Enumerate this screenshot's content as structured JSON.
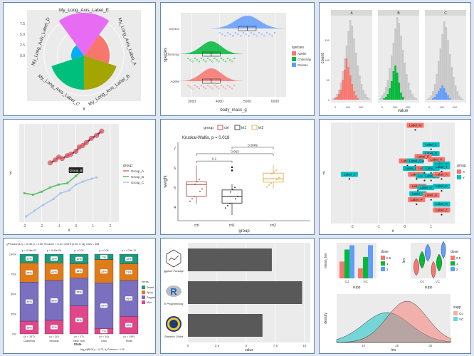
{
  "chart_data": [
    {
      "type": "pie",
      "variant": "coxcomb",
      "categories": [
        "My_Long_Axis_Label_A",
        "My_Long_Axis_Label_B",
        "My_Long_Axis_Label_C",
        "My_Long_Axis_Label_D",
        "My_Long_Axis_Label_E"
      ],
      "values": [
        3,
        4,
        4,
        1.5,
        5
      ],
      "colors": [
        "#f8766d",
        "#a3a500",
        "#00bf7d",
        "#00b0f6",
        "#e76bf3"
      ],
      "xlabel": "x",
      "yticks": [
        "0.0",
        "2.5",
        "5.0",
        "7.5"
      ]
    },
    {
      "type": "raincloud",
      "categories": [
        "Adelie",
        "Chinstrap",
        "Gentoo"
      ],
      "medians": [
        3700,
        3700,
        5000
      ],
      "colors": [
        "#f8766d",
        "#00ba38",
        "#619cff"
      ],
      "xlabel": "body_mass_g",
      "ylabel": "species",
      "xticks": [
        "3000",
        "4000",
        "5000",
        "6000"
      ],
      "legend_title": "species",
      "legend": [
        "Adelie",
        "Chinstrap",
        "Gentoo"
      ]
    },
    {
      "type": "histogram",
      "facets": [
        "A",
        "B",
        "C"
      ],
      "colors": [
        "#f8766d",
        "#00ba38",
        "#619cff"
      ],
      "xlabel": "value",
      "ylabel": "count",
      "xticks": [
        "0",
        "200",
        "400"
      ],
      "yticks": [
        "0",
        "50",
        "100",
        "150"
      ]
    },
    {
      "type": "line",
      "series": [
        {
          "name": "Group_A",
          "color": "#e46a6a",
          "x": [
            -1.5,
            -1.2,
            -1.0,
            -0.8,
            -0.5,
            -0.3,
            0.0,
            0.2,
            0.4,
            0.6,
            0.9,
            1.2,
            1.5
          ],
          "y": [
            1.1,
            1.3,
            1.5,
            1.4,
            1.6,
            1.7,
            1.9,
            2.2,
            2.3,
            2.5,
            2.8,
            3.0,
            3.3
          ]
        },
        {
          "name": "Group_B",
          "color": "#5cbf66",
          "x": [
            -3.0,
            -2.5,
            -2.0,
            -1.5,
            -1.0,
            -0.5,
            0.0,
            0.3
          ],
          "y": [
            -1.0,
            -1.1,
            -0.9,
            -0.6,
            -0.4,
            -0.3,
            0.2,
            0.5
          ]
        },
        {
          "name": "Group_C",
          "color": "#a9c6ef",
          "x": [
            -2.9,
            -2.4,
            -1.9,
            -1.3,
            -0.9,
            -0.4,
            0.0,
            0.4,
            0.9,
            1.2
          ],
          "y": [
            -2.6,
            -2.2,
            -1.8,
            -1.4,
            -1.0,
            -0.8,
            -0.4,
            -0.2,
            0.0,
            0.1
          ]
        }
      ],
      "annotation": "Group_B",
      "xlabel": "x",
      "ylabel": "y",
      "xticks": [
        "-3",
        "-2",
        "-1",
        "0",
        "1",
        "2"
      ],
      "legend_title": "group",
      "legend": [
        "Group_A",
        "Group_B",
        "Group_C"
      ]
    },
    {
      "type": "box",
      "title": "Kruskal-Wallis, p = 0.018",
      "categories": [
        "ctrl",
        "trt1",
        "trt2"
      ],
      "medians": [
        5.15,
        4.55,
        5.44
      ],
      "q1": [
        4.55,
        4.2,
        5.27
      ],
      "q3": [
        5.29,
        4.87,
        5.73
      ],
      "whisker_low": [
        4.17,
        3.59,
        4.92
      ],
      "whisker_high": [
        6.11,
        5.17,
        6.15
      ],
      "outliers": [
        [],
        [
          5.87,
          6.03
        ],
        []
      ],
      "colors": [
        "#9e3a2b",
        "#222222",
        "#e0a33a"
      ],
      "comparisons": [
        {
          "pair": "ctrl-trt1",
          "p": "0.2"
        },
        {
          "pair": "ctrl-trt2",
          "p": "0.063"
        },
        {
          "pair": "trt1-trt2",
          "p": "0.0089"
        }
      ],
      "xlabel": "group",
      "ylabel": "weight",
      "yticks": [
        "4",
        "5",
        "6",
        "7"
      ],
      "ylim": [
        3.3,
        7.3
      ],
      "legend_title": "group",
      "legend": [
        "ctrl",
        "trt1",
        "trt2"
      ]
    },
    {
      "type": "scatter",
      "points": [
        {
          "label": "Label_M",
          "x": 0.4,
          "y": 3.7,
          "group": "X"
        },
        {
          "label": "Label_S",
          "x": 0.1,
          "y": 1.3,
          "group": "X"
        },
        {
          "label": "Label_Q",
          "x": 0.4,
          "y": 1.3,
          "group": "Y"
        },
        {
          "label": "Label_J",
          "x": -2.1,
          "y": 0.4,
          "group": "Y"
        },
        {
          "label": "Label_D",
          "x": 0.25,
          "y": 0.8,
          "group": "Y"
        },
        {
          "label": "Label_C",
          "x": 0.45,
          "y": 0.4,
          "group": "X"
        },
        {
          "label": "Label_W",
          "x": 0.75,
          "y": 0.8,
          "group": "X"
        },
        {
          "label": "Label_U",
          "x": 0.75,
          "y": 0.3,
          "group": "Y"
        },
        {
          "label": "Label_L",
          "x": 1.0,
          "y": 2.4,
          "group": "Y"
        },
        {
          "label": "Label_N",
          "x": 1.0,
          "y": 1.8,
          "group": "Y"
        },
        {
          "label": "Label_K",
          "x": 1.2,
          "y": 1.4,
          "group": "X"
        },
        {
          "label": "Label_Y",
          "x": 1.4,
          "y": 1.1,
          "group": "Y"
        },
        {
          "label": "Label_E",
          "x": 0.7,
          "y": 1.6,
          "group": "X"
        },
        {
          "label": "Label_I",
          "x": 1.0,
          "y": 0.8,
          "group": "Y"
        },
        {
          "label": "Label_B",
          "x": 1.0,
          "y": 0.3,
          "group": "Y"
        },
        {
          "label": "Label_A",
          "x": 1.4,
          "y": 0.4,
          "group": "X"
        },
        {
          "label": "Label_T",
          "x": 1.4,
          "y": 0.9,
          "group": "Y"
        },
        {
          "label": "Label_O",
          "x": 0.5,
          "y": -0.4,
          "group": "X"
        },
        {
          "label": "Label_H",
          "x": 0.8,
          "y": -0.5,
          "group": "Y"
        },
        {
          "label": "Label_F",
          "x": 1.4,
          "y": -0.4,
          "group": "Y"
        },
        {
          "label": "Label_V",
          "x": 0.5,
          "y": -0.9,
          "group": "Y"
        },
        {
          "label": "Label_G",
          "x": 1.0,
          "y": -1.0,
          "group": "X"
        },
        {
          "label": "Label_P",
          "x": 0.45,
          "y": -1.3,
          "group": "X"
        },
        {
          "label": "Label_R",
          "x": 1.4,
          "y": -1.6,
          "group": "Y"
        },
        {
          "label": "Label_Z",
          "x": 1.4,
          "y": -2.0,
          "group": "X"
        }
      ],
      "xlabel": "x",
      "ylabel": "y",
      "xticks": [
        "-2",
        "-1",
        "0",
        "1"
      ],
      "legend_title": "group",
      "legend": [
        "X",
        "Y"
      ],
      "colors": {
        "X": "#f8766d",
        "Y": "#00bfc4"
      }
    },
    {
      "type": "bar",
      "stacked": true,
      "subtitle": "χ²Pearson(12) = 20.45, p = 0.06, V̂Cramer = 0.10, CI95% [0.00, 0.14], nobs = 358",
      "categories": [
        "California",
        "Nevada",
        "New York",
        "Ohio",
        "Texas"
      ],
      "pvalues": [
        "p = 4.08e-03",
        "p = 5.40e-05",
        "p = 0.02",
        "p = 0.06",
        "p = 4.79e-12"
      ],
      "counts": [
        "(n = 157)",
        "(n = 20)",
        "(n = 17)",
        "(n = 14)",
        "(n = 149)"
      ],
      "series": [
        {
          "name": "Sweet",
          "color": "#1a9a7e",
          "values": [
            11,
            11,
            12,
            7,
            12
          ]
        },
        {
          "name": "Spicy",
          "color": "#e07b1a",
          "values": [
            24,
            22,
            18,
            29,
            21
          ]
        },
        {
          "name": "Regular",
          "color": "#7b6fbf",
          "values": [
            49,
            50,
            35,
            57,
            45
          ]
        },
        {
          "name": "Mild",
          "color": "#e0468a",
          "values": [
            16,
            17,
            35,
            7,
            22
          ]
        }
      ],
      "xlabel": "State",
      "ylabel": "",
      "yticks": [
        "0%",
        "25%",
        "50%",
        "75%",
        "100%"
      ],
      "legend_title": "Items",
      "caption": "log_e(BF01) = -9.73, â_Poisson = 1.00"
    },
    {
      "type": "bar",
      "horizontal": true,
      "categories": [
        "ggplot2 Package",
        "R Programming",
        "Statistics Globe"
      ],
      "values": [
        7.2,
        9.8,
        6.4
      ],
      "color": "#595959",
      "xlabel": "value",
      "xticks": [
        "0",
        "2.5",
        "5",
        "7.5",
        "10"
      ]
    },
    {
      "type": "bar",
      "panel": "a",
      "categories": [
        "OJ",
        "VC"
      ],
      "series": [
        {
          "name": "0.5",
          "color": "#f8766d",
          "values": [
            13.23,
            7.98
          ]
        },
        {
          "name": "1",
          "color": "#00ba38",
          "values": [
            22.7,
            16.77
          ]
        },
        {
          "name": "2",
          "color": "#619cff",
          "values": [
            26.06,
            26.14
          ]
        }
      ],
      "xlabel": "supp",
      "ylabel": "mean_len",
      "legend_title": "dose",
      "legend": [
        "0.5",
        "1",
        "2"
      ]
    },
    {
      "type": "violin",
      "panel": "b",
      "categories": [
        "OJ",
        "VC"
      ],
      "series": [
        {
          "name": "0.5",
          "color": "#f8766d"
        },
        {
          "name": "1",
          "color": "#00ba38"
        },
        {
          "name": "2",
          "color": "#619cff"
        }
      ],
      "xlabel": "supp",
      "ylabel": "len",
      "legend_title": "dose",
      "legend": [
        "0.5",
        "1",
        "2"
      ]
    },
    {
      "type": "area",
      "panel": "c",
      "series": [
        {
          "name": "OJ",
          "color": "#f8766d"
        },
        {
          "name": "VC",
          "color": "#00bfc4"
        }
      ],
      "xlabel": "len",
      "ylabel": "density",
      "xticks": [
        "10",
        "20",
        "30"
      ],
      "legend_title": "supp",
      "legend": [
        "OJ",
        "VC"
      ]
    }
  ]
}
